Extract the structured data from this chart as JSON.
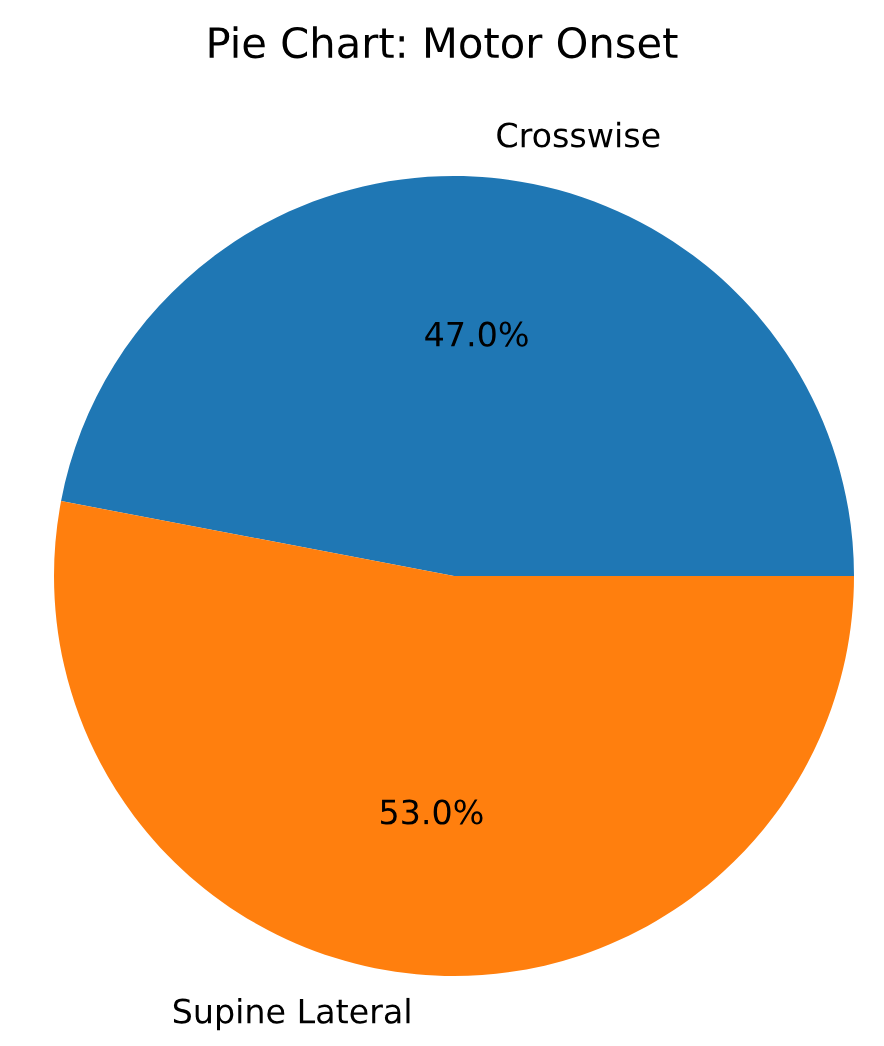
{
  "chart_data": {
    "type": "pie",
    "title": "Pie Chart: Motor Onset",
    "categories": [
      "Crosswise",
      "Supine Lateral"
    ],
    "values": [
      47.0,
      53.0
    ],
    "colors": [
      "#1f77b4",
      "#ff7f0e"
    ],
    "value_labels": [
      "47.0%",
      "53.0%"
    ]
  }
}
